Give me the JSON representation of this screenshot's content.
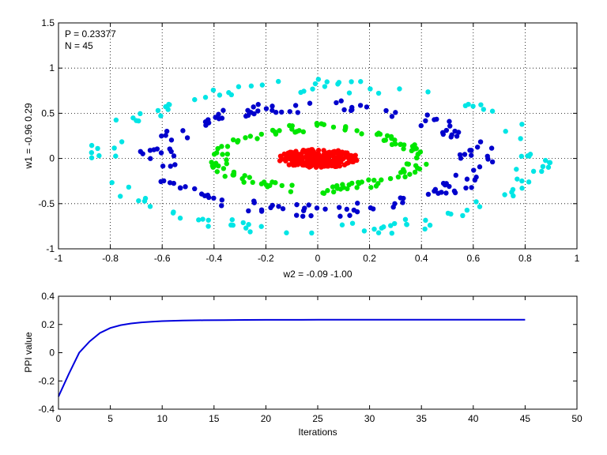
{
  "chart_data": [
    {
      "type": "scatter",
      "title": "",
      "xlabel": "w2 = -0.09  -1.00",
      "ylabel": "w1 = -0.96  0.29",
      "xlim": [
        -1,
        1
      ],
      "ylim": [
        -1,
        1.5
      ],
      "xticks": [
        -1,
        -0.8,
        -0.6,
        -0.4,
        -0.2,
        0,
        0.2,
        0.4,
        0.6,
        0.8,
        1
      ],
      "xtick_labels": [
        "-1",
        "-0.8",
        "-0.6",
        "-0.4",
        "-0.2",
        "0",
        "0.2",
        "0.4",
        "0.6",
        "0.8",
        "1"
      ],
      "yticks": [
        -1,
        -0.5,
        0,
        0.5,
        1,
        1.5
      ],
      "ytick_labels": [
        "-1",
        "-0.5",
        "0",
        "0.5",
        "1",
        "1.5"
      ],
      "grid": true,
      "annotations": [
        "P = 0.23377",
        "N = 45"
      ],
      "series": [
        {
          "color": "#00e5e5",
          "rings": [
            {
              "rx": 0.85,
              "ry": 0.8,
              "count": 120,
              "jitter": 0.08
            }
          ]
        },
        {
          "color": "#0000cc",
          "rings": [
            {
              "rx": 0.62,
              "ry": 0.58,
              "count": 150,
              "jitter": 0.07
            }
          ]
        },
        {
          "color": "#00e600",
          "rings": [
            {
              "rx": 0.38,
              "ry": 0.34,
              "count": 130,
              "jitter": 0.05
            }
          ]
        },
        {
          "color": "#ff0000",
          "rings": [
            {
              "rx": 0.16,
              "ry": 0.1,
              "count": 220,
              "jitter": 0.0,
              "filled": true
            }
          ]
        }
      ]
    },
    {
      "type": "line",
      "title": "",
      "xlabel": "Iterations",
      "ylabel": "PPI value",
      "xlim": [
        0,
        50
      ],
      "ylim": [
        -0.4,
        0.4
      ],
      "xticks": [
        0,
        5,
        10,
        15,
        20,
        25,
        30,
        35,
        40,
        45,
        50
      ],
      "xtick_labels": [
        "0",
        "5",
        "10",
        "15",
        "20",
        "25",
        "30",
        "35",
        "40",
        "45",
        "50"
      ],
      "yticks": [
        -0.4,
        -0.2,
        0,
        0.2,
        0.4
      ],
      "ytick_labels": [
        "-0.4",
        "-0.2",
        "0",
        "0.2",
        "0.4"
      ],
      "grid": false,
      "series": [
        {
          "color": "#0000dd",
          "x": [
            0,
            1,
            2,
            3,
            4,
            5,
            6,
            7,
            8,
            9,
            10,
            12,
            14,
            16,
            18,
            20,
            25,
            30,
            35,
            40,
            45
          ],
          "y": [
            -0.31,
            -0.15,
            0.0,
            0.08,
            0.14,
            0.175,
            0.195,
            0.207,
            0.215,
            0.22,
            0.224,
            0.228,
            0.23,
            0.231,
            0.232,
            0.233,
            0.2335,
            0.2337,
            0.2337,
            0.2338,
            0.2338
          ]
        }
      ]
    }
  ]
}
